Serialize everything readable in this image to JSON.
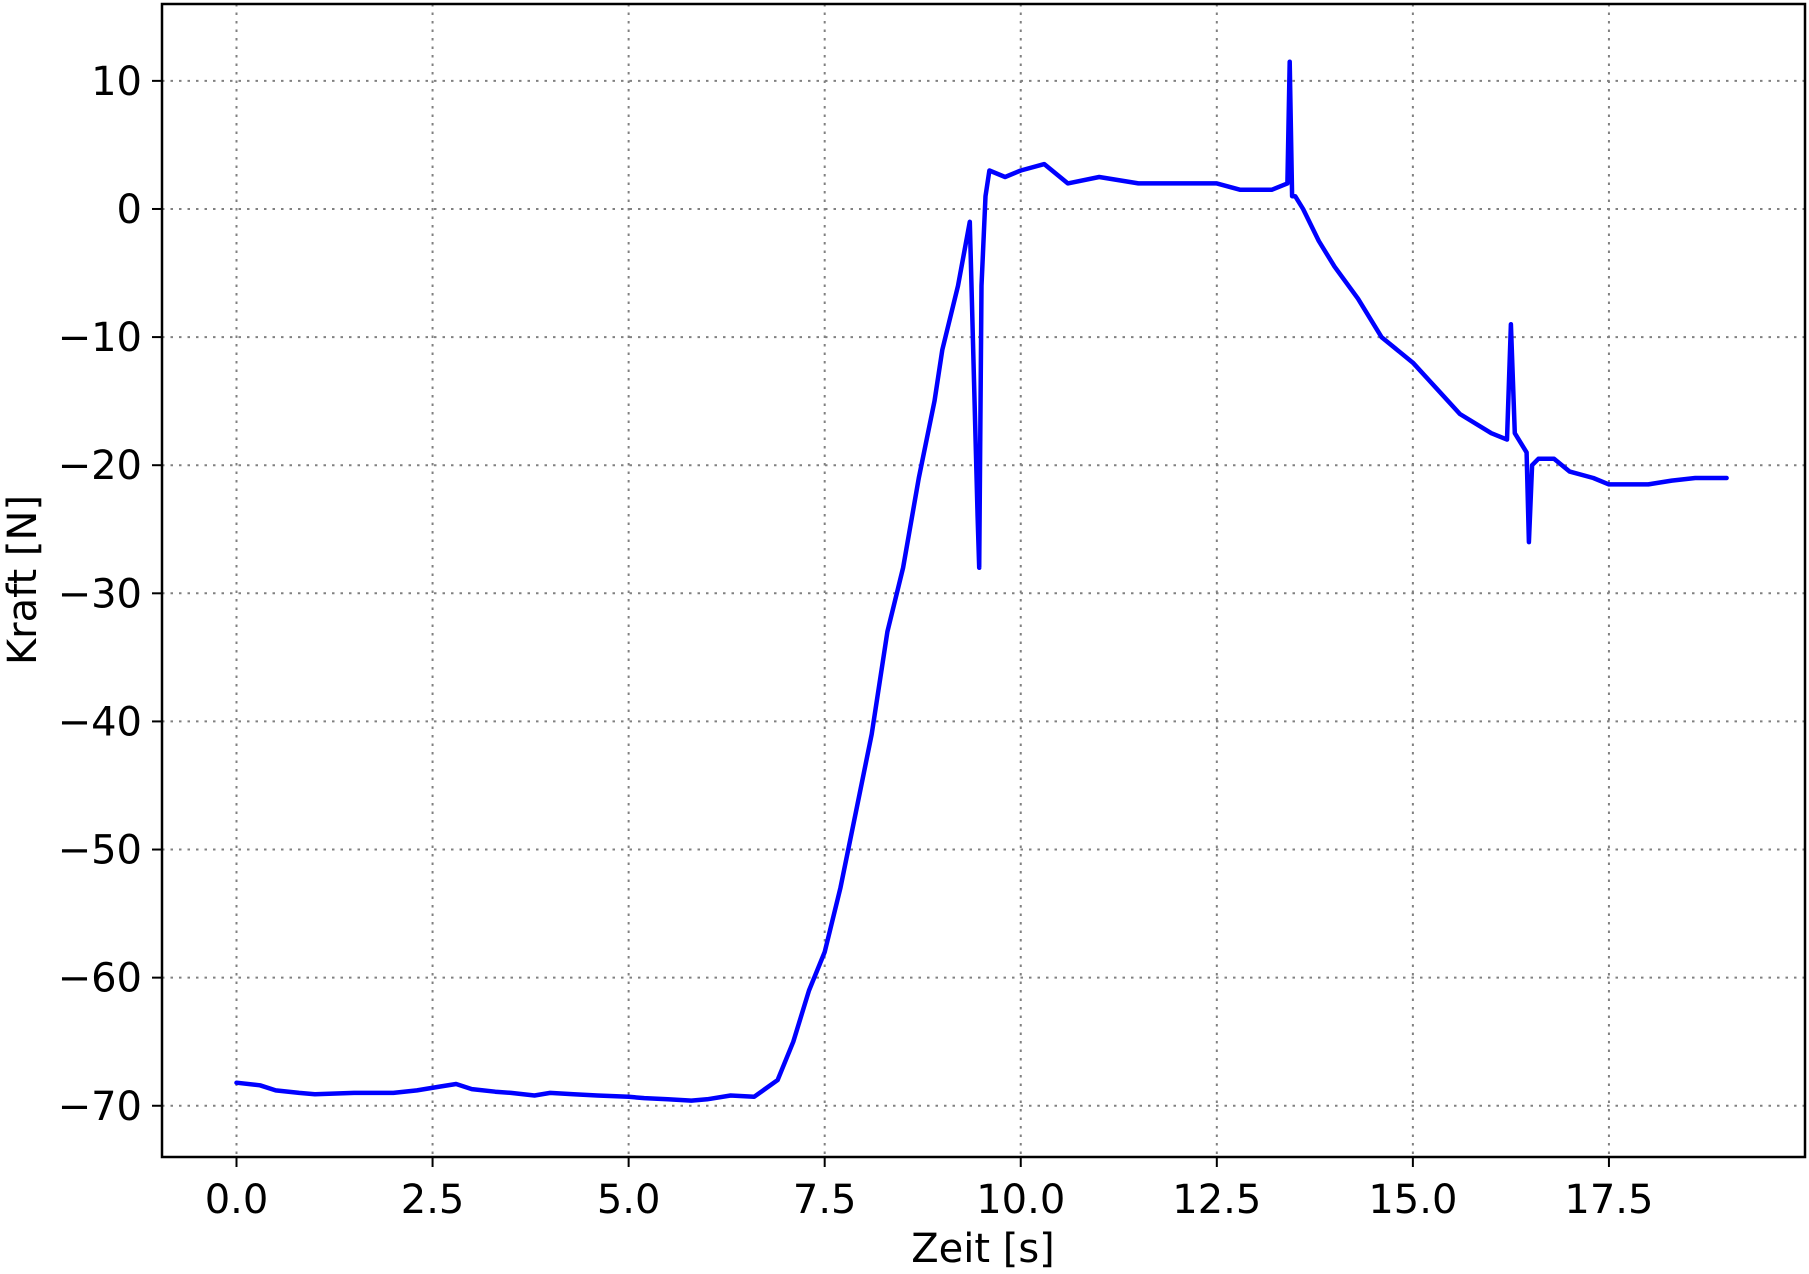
{
  "chart_data": {
    "type": "line",
    "xlabel": "Zeit [s]",
    "ylabel": "Kraft [N]",
    "xlim": [
      -0.95,
      20.0
    ],
    "ylim": [
      -74,
      16
    ],
    "x_ticks": [
      0.0,
      2.5,
      5.0,
      7.5,
      10.0,
      12.5,
      15.0,
      17.5
    ],
    "x_tick_labels": [
      "0.0",
      "2.5",
      "5.0",
      "7.5",
      "10.0",
      "12.5",
      "15.0",
      "17.5"
    ],
    "y_ticks": [
      10,
      0,
      -10,
      -20,
      -30,
      -40,
      -50,
      -60,
      -70
    ],
    "y_tick_labels": [
      "10",
      "0",
      "−10",
      "−20",
      "−30",
      "−40",
      "−50",
      "−60",
      "−70"
    ],
    "grid": true,
    "series": [
      {
        "color": "#0000ff",
        "x": [
          0.0,
          0.3,
          0.5,
          0.8,
          1.0,
          1.5,
          2.0,
          2.3,
          2.6,
          2.8,
          3.0,
          3.3,
          3.5,
          3.8,
          4.0,
          4.3,
          4.6,
          5.0,
          5.2,
          5.5,
          5.8,
          6.0,
          6.3,
          6.6,
          6.9,
          7.1,
          7.3,
          7.5,
          7.7,
          7.9,
          8.1,
          8.3,
          8.5,
          8.7,
          8.9,
          9.0,
          9.2,
          9.35,
          9.45,
          9.47,
          9.5,
          9.55,
          9.6,
          9.8,
          10.0,
          10.3,
          10.6,
          11.0,
          11.5,
          12.0,
          12.5,
          12.8,
          13.2,
          13.4,
          13.43,
          13.46,
          13.5,
          13.6,
          13.8,
          14.0,
          14.3,
          14.6,
          15.0,
          15.3,
          15.6,
          16.0,
          16.2,
          16.25,
          16.3,
          16.45,
          16.48,
          16.52,
          16.6,
          16.8,
          17.0,
          17.3,
          17.5,
          17.8,
          18.0,
          18.3,
          18.6,
          19.0
        ],
        "y": [
          -68.2,
          -68.4,
          -68.8,
          -69.0,
          -69.1,
          -69.0,
          -69.0,
          -68.8,
          -68.5,
          -68.3,
          -68.7,
          -68.9,
          -69.0,
          -69.2,
          -69.0,
          -69.1,
          -69.2,
          -69.3,
          -69.4,
          -69.5,
          -69.6,
          -69.5,
          -69.2,
          -69.3,
          -68.0,
          -65.0,
          -61.0,
          -58.0,
          -53.0,
          -47.0,
          -41.0,
          -33.0,
          -28.0,
          -21.0,
          -15.0,
          -11.0,
          -6.0,
          -1.0,
          -24.0,
          -28.0,
          -6.0,
          1.0,
          3.0,
          2.5,
          3.0,
          3.5,
          2.0,
          2.5,
          2.0,
          2.0,
          2.0,
          1.5,
          1.5,
          2.0,
          11.5,
          1.0,
          1.0,
          0.0,
          -2.5,
          -4.5,
          -7.0,
          -10.0,
          -12.0,
          -14.0,
          -16.0,
          -17.5,
          -18.0,
          -9.0,
          -17.5,
          -19.0,
          -26.0,
          -20.0,
          -19.5,
          -19.5,
          -20.5,
          -21.0,
          -21.5,
          -21.5,
          -21.5,
          -21.2,
          -21.0,
          -21.0
        ]
      }
    ]
  }
}
